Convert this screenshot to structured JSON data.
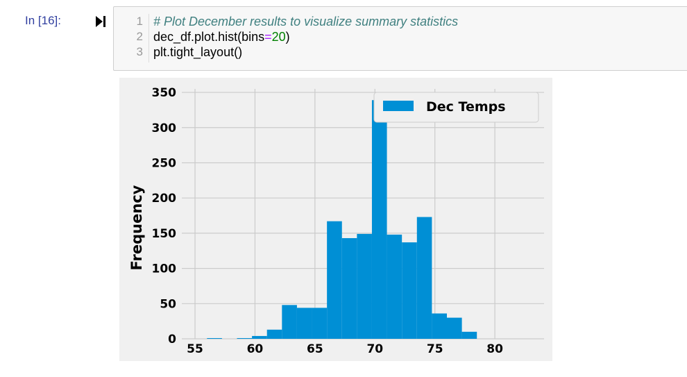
{
  "cell": {
    "prompt": "In [16]:",
    "run_icon": "step-forward-icon",
    "line_numbers": [
      "1",
      "2",
      "3"
    ],
    "line1_comment": "# Plot December results to visualize summary statistics",
    "line2_a": "dec_df.plot.hist(bins",
    "line2_op": "=",
    "line2_num": "20",
    "line2_b": ")",
    "line3": "plt.tight_layout()"
  },
  "chart_data": {
    "type": "bar",
    "subtype": "histogram",
    "title": "",
    "xlabel": "",
    "ylabel": "Frequency",
    "xlim": [
      53.9,
      84.1
    ],
    "ylim": [
      0,
      355
    ],
    "xticks": [
      55,
      60,
      65,
      70,
      75,
      80
    ],
    "yticks": [
      0,
      50,
      100,
      150,
      200,
      250,
      300,
      350
    ],
    "bin_edges": [
      56,
      57.25,
      58.5,
      59.75,
      61,
      62.25,
      63.5,
      64.75,
      66,
      67.25,
      68.5,
      69.75,
      71,
      72.25,
      73.5,
      74.75,
      76,
      77.25,
      78.5,
      79.75,
      81
    ],
    "series": [
      {
        "name": "Dec Temps",
        "values": [
          1,
          0,
          1,
          4,
          13,
          48,
          44,
          44,
          167,
          143,
          149,
          339,
          148,
          137,
          173,
          36,
          30,
          10,
          0,
          0
        ]
      }
    ],
    "grid": true,
    "legend_position": "top-right",
    "bar_color": "#008fd5",
    "background_color": "#f0f0f0"
  }
}
